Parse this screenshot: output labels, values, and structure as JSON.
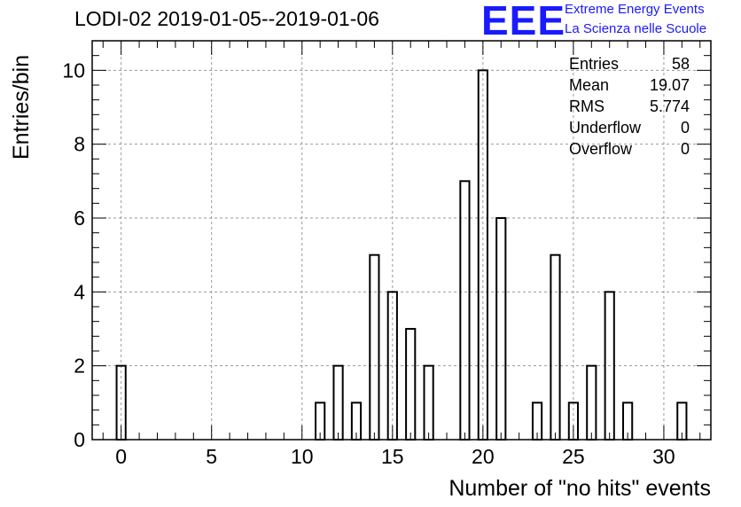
{
  "header": {
    "title": "LODI-02 2019-01-05--2019-01-06"
  },
  "logo": {
    "mark": "EEE",
    "line1": "Extreme Energy Events",
    "line2": "La Scienza nelle Scuole",
    "color": "#1a1aff"
  },
  "stats": {
    "rows": [
      {
        "label": "Entries",
        "value": "58"
      },
      {
        "label": "Mean",
        "value": "19.07"
      },
      {
        "label": "RMS",
        "value": "5.774"
      },
      {
        "label": "Underflow",
        "value": "0"
      },
      {
        "label": "Overflow",
        "value": "0"
      }
    ]
  },
  "chart_data": {
    "type": "bar",
    "title": "LODI-02 2019-01-05--2019-01-06",
    "xlabel": "Number of \"no hits\" events",
    "ylabel": "Entries/bin",
    "xlim": [
      -1.6,
      32.6
    ],
    "ylim": [
      0,
      10.8
    ],
    "xticks": [
      0,
      5,
      10,
      15,
      20,
      25,
      30
    ],
    "yticks": [
      0,
      2,
      4,
      6,
      8,
      10
    ],
    "grid": true,
    "bin_width": 0.5,
    "x": [
      0,
      11,
      12,
      13,
      14,
      15,
      16,
      17,
      19,
      20,
      21,
      23,
      24,
      25,
      26,
      27,
      28,
      31
    ],
    "values": [
      2,
      1,
      2,
      1,
      5,
      4,
      3,
      2,
      7,
      10,
      6,
      1,
      5,
      1,
      2,
      4,
      1,
      1
    ],
    "bar_fill": "none",
    "bar_stroke": "#000000"
  }
}
